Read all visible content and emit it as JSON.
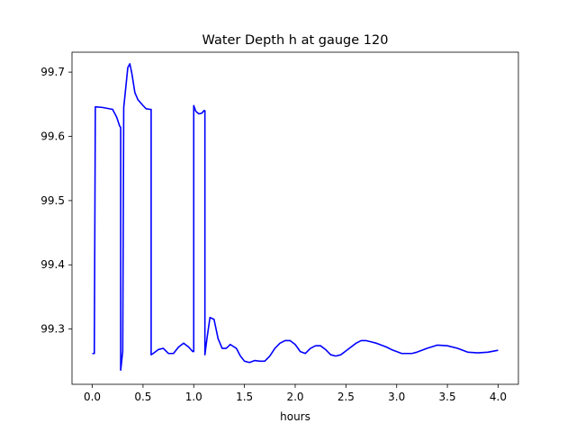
{
  "chart_data": {
    "type": "line",
    "title": "Water Depth h at gauge 120",
    "xlabel": "hours",
    "ylabel": "",
    "xlim": [
      -0.2,
      4.2
    ],
    "ylim": [
      99.214,
      99.731
    ],
    "xticks": [
      0.0,
      0.5,
      1.0,
      1.5,
      2.0,
      2.5,
      3.0,
      3.5,
      4.0
    ],
    "xtick_labels": [
      "0.0",
      "0.5",
      "1.0",
      "1.5",
      "2.0",
      "2.5",
      "3.0",
      "3.5",
      "4.0"
    ],
    "yticks": [
      99.3,
      99.4,
      99.5,
      99.6,
      99.7
    ],
    "ytick_labels": [
      "99.3",
      "99.4",
      "99.5",
      "99.6",
      "99.7"
    ],
    "grid": false,
    "series": [
      {
        "name": "",
        "color": "#0000ff",
        "x": [
          0.0,
          0.02,
          0.03,
          0.1,
          0.2,
          0.24,
          0.27,
          0.28,
          0.28,
          0.3,
          0.31,
          0.33,
          0.35,
          0.37,
          0.39,
          0.42,
          0.45,
          0.5,
          0.53,
          0.57,
          0.58,
          0.58,
          0.6,
          0.65,
          0.7,
          0.75,
          0.8,
          0.85,
          0.9,
          0.95,
          0.99,
          1.0,
          1.0,
          1.02,
          1.05,
          1.08,
          1.1,
          1.11,
          1.11,
          1.13,
          1.16,
          1.2,
          1.24,
          1.28,
          1.32,
          1.36,
          1.42,
          1.46,
          1.5,
          1.55,
          1.6,
          1.65,
          1.7,
          1.75,
          1.8,
          1.85,
          1.9,
          1.95,
          2.0,
          2.05,
          2.1,
          2.15,
          2.2,
          2.25,
          2.3,
          2.35,
          2.4,
          2.45,
          2.5,
          2.55,
          2.6,
          2.65,
          2.7,
          2.75,
          2.8,
          2.85,
          2.9,
          2.95,
          3.0,
          3.05,
          3.1,
          3.15,
          3.2,
          3.3,
          3.4,
          3.5,
          3.6,
          3.7,
          3.8,
          3.9,
          4.0
        ],
        "y": [
          99.262,
          99.262,
          99.646,
          99.645,
          99.642,
          99.63,
          99.616,
          99.614,
          99.236,
          99.265,
          99.645,
          99.676,
          99.707,
          99.713,
          99.698,
          99.668,
          99.657,
          99.648,
          99.643,
          99.642,
          99.642,
          99.26,
          99.262,
          99.268,
          99.27,
          99.262,
          99.262,
          99.272,
          99.278,
          99.272,
          99.265,
          99.265,
          99.648,
          99.639,
          99.635,
          99.636,
          99.64,
          99.64,
          99.26,
          99.285,
          99.318,
          99.315,
          99.285,
          99.27,
          99.27,
          99.276,
          99.27,
          99.258,
          99.25,
          99.248,
          99.251,
          99.25,
          99.25,
          99.258,
          99.27,
          99.278,
          99.282,
          99.282,
          99.276,
          99.265,
          99.262,
          99.27,
          99.274,
          99.274,
          99.268,
          99.26,
          99.258,
          99.26,
          99.266,
          99.272,
          99.278,
          99.282,
          99.282,
          99.28,
          99.278,
          99.275,
          99.272,
          99.268,
          99.265,
          99.262,
          99.262,
          99.262,
          99.264,
          99.27,
          99.275,
          99.274,
          99.27,
          99.264,
          99.263,
          99.264,
          99.267
        ]
      }
    ]
  }
}
